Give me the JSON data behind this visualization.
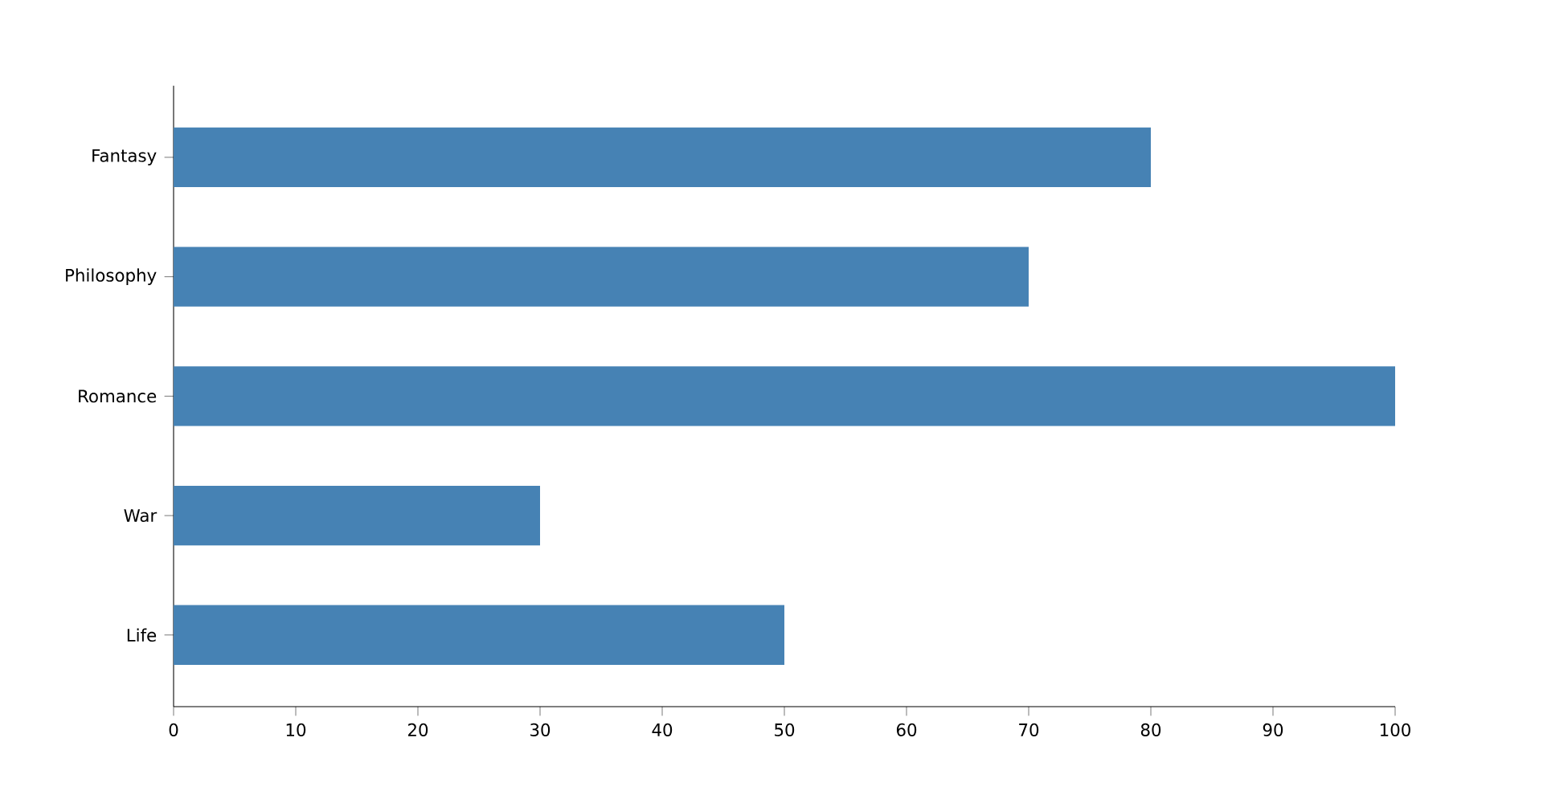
{
  "chart_data": {
    "type": "bar",
    "orientation": "horizontal",
    "categories": [
      "Fantasy",
      "Philosophy",
      "Romance",
      "War",
      "Life"
    ],
    "values": [
      80,
      70,
      100,
      30,
      50
    ],
    "color": "#4682b4",
    "xlim": [
      0,
      100
    ],
    "xticks": [
      0,
      10,
      20,
      30,
      40,
      50,
      60,
      70,
      80,
      90,
      100
    ],
    "grid": false
  }
}
